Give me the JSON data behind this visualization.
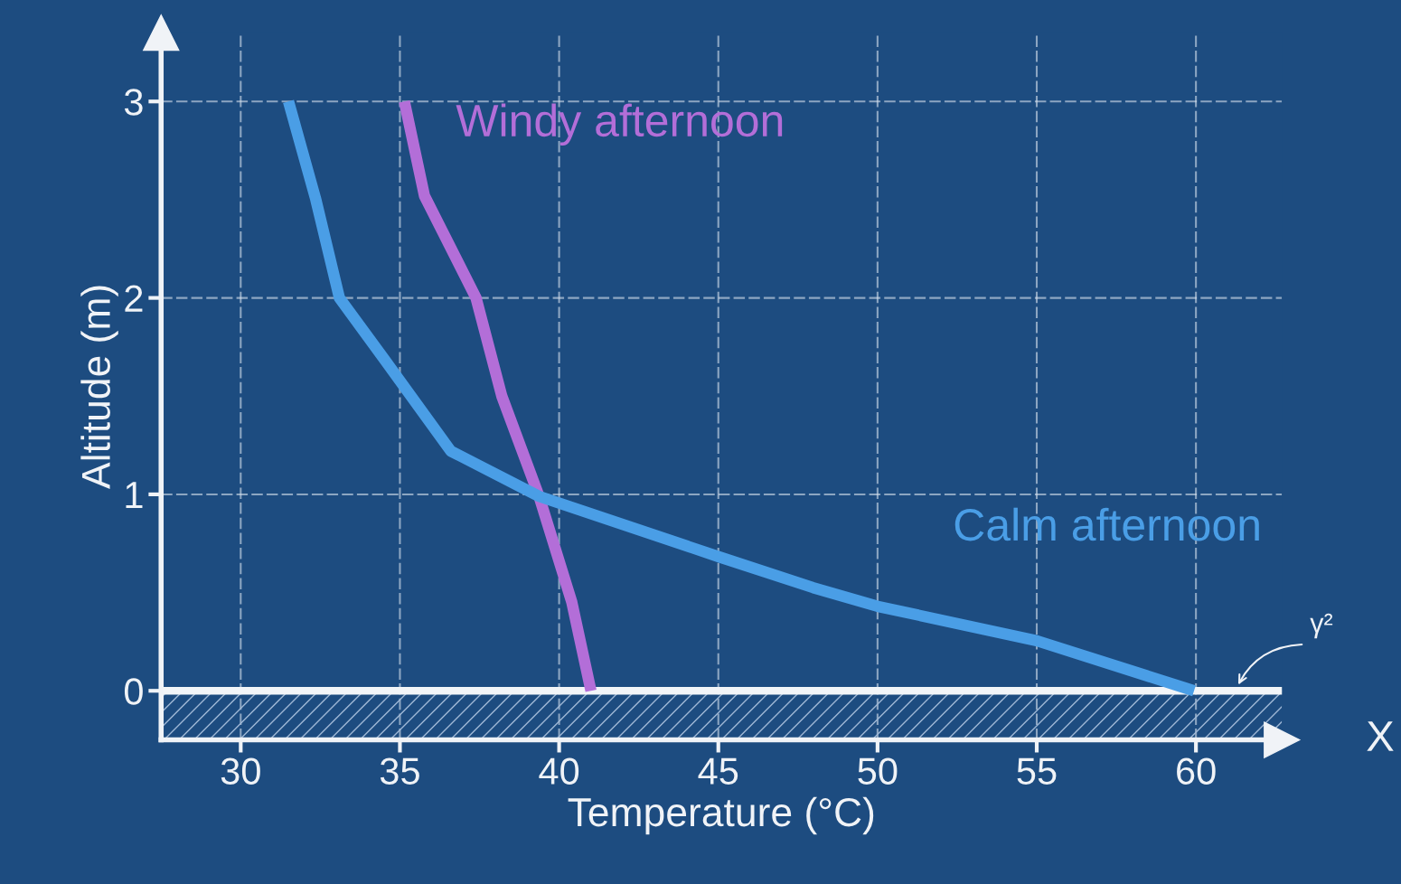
{
  "chart_data": {
    "type": "line",
    "xlabel": "Temperature (°C)",
    "ylabel": "Altitude (m)",
    "xlim": [
      27.5,
      62.7
    ],
    "ylim": [
      -0.25,
      3.35
    ],
    "xticks": [
      30,
      35,
      40,
      45,
      50,
      55,
      60
    ],
    "yticks": [
      0,
      1,
      2,
      3
    ],
    "grid": true,
    "line_style": "solid",
    "ref_lines": [
      {
        "axis": "y",
        "value": 0,
        "color": "#f2f5f8"
      }
    ],
    "annotations": [
      "X",
      "γ²"
    ],
    "series": [
      {
        "name": "Windy afternoon",
        "color": "#b36ed8",
        "x": [
          35.14,
          35.77,
          37.39,
          38.2,
          39.37,
          40.4,
          41.0
        ],
        "values": [
          3,
          2.52,
          2.0,
          1.5,
          0.99,
          0.45,
          0
        ]
      },
      {
        "name": "Calm afternoon",
        "color": "#4a9ee6",
        "x": [
          31.5,
          32.36,
          33.1,
          34.5,
          36.6,
          39.37,
          45.06,
          47.98,
          50.0,
          55.0,
          59.94
        ],
        "values": [
          3,
          2.5,
          2.0,
          1.69,
          1.22,
          0.99,
          0.68,
          0.525,
          0.43,
          0.255,
          0
        ]
      }
    ]
  }
}
